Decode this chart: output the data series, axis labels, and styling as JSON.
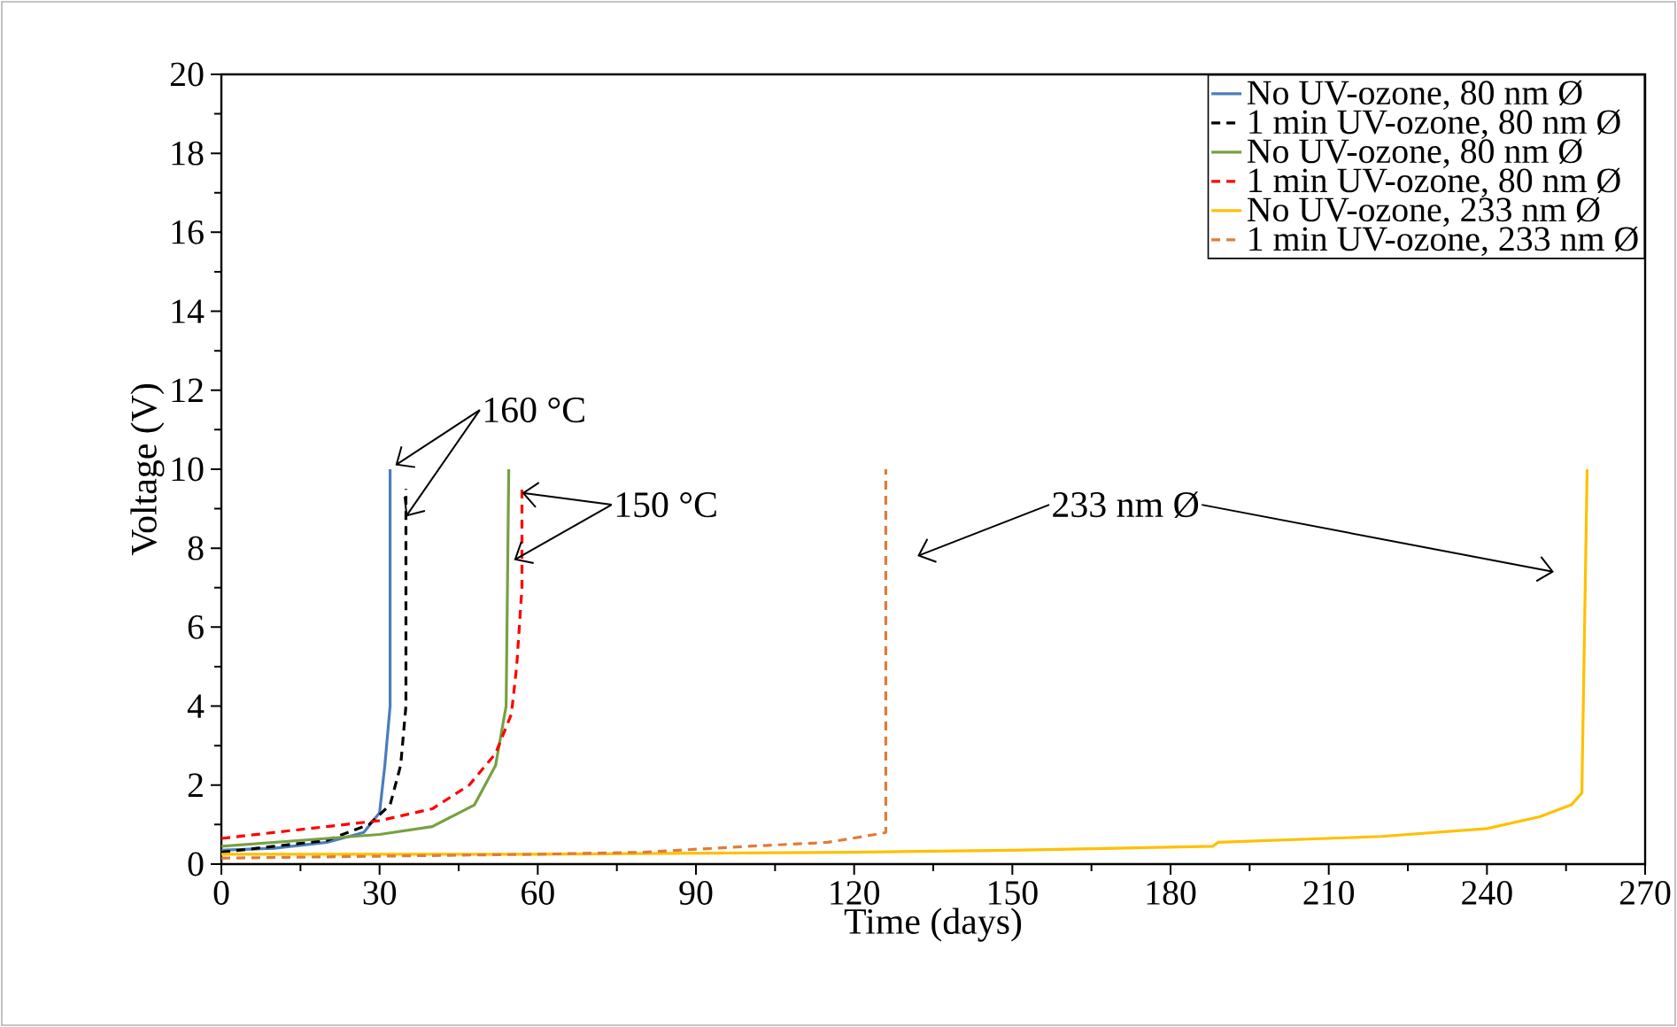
{
  "chart_data": {
    "type": "line",
    "xlabel": "Time (days)",
    "ylabel": "Voltage (V)",
    "xlim": [
      0,
      270
    ],
    "xticks": [
      0,
      30,
      60,
      90,
      120,
      150,
      180,
      210,
      240,
      270
    ],
    "ylim": [
      0,
      20
    ],
    "yticks": [
      0,
      2,
      4,
      6,
      8,
      10,
      12,
      14,
      16,
      18,
      20
    ],
    "grid": false,
    "legend": "top right",
    "marker": "none",
    "annotations": [
      {
        "text": "160 °C",
        "x": 33,
        "y": 10.1
      },
      {
        "text": "150 °C",
        "x": 57,
        "y": 9.4
      },
      "233 nm Ø"
    ],
    "series": [
      {
        "name": "No UV-ozone, 80 nm Ø",
        "color": "#4a7ebb",
        "line_style": "solid",
        "x": [
          0,
          10,
          20,
          27,
          30,
          31,
          32,
          32
        ],
        "values": [
          0.35,
          0.4,
          0.55,
          0.8,
          1.3,
          2.5,
          4,
          10
        ]
      },
      {
        "name": "1 min UV-ozone, 80 nm Ø",
        "color": "#000000",
        "line_style": "dashed",
        "x": [
          0,
          10,
          20,
          28,
          32,
          34,
          35,
          35
        ],
        "values": [
          0.3,
          0.45,
          0.6,
          1.0,
          1.5,
          2.5,
          4,
          9.5
        ]
      },
      {
        "name": "No UV-ozone, 80 nm Ø",
        "color": "#77a043",
        "line_style": "solid",
        "x": [
          0,
          10,
          20,
          30,
          40,
          48,
          52,
          54,
          54.5
        ],
        "values": [
          0.45,
          0.55,
          0.65,
          0.75,
          0.95,
          1.5,
          2.5,
          4,
          10
        ]
      },
      {
        "name": "1 min UV-ozone, 80 nm Ø",
        "color": "#ff0000",
        "line_style": "dashed",
        "x": [
          0,
          10,
          20,
          30,
          40,
          47,
          52,
          55,
          56,
          57,
          57
        ],
        "values": [
          0.65,
          0.8,
          0.95,
          1.1,
          1.4,
          2.0,
          2.8,
          3.8,
          5,
          7,
          9.5
        ]
      },
      {
        "name": "No UV-ozone, 233 nm Ø",
        "color": "#ffc000",
        "line_style": "solid",
        "x": [
          0,
          60,
          120,
          150,
          188,
          189,
          220,
          240,
          250,
          256,
          258,
          259
        ],
        "values": [
          0.25,
          0.25,
          0.3,
          0.35,
          0.45,
          0.55,
          0.7,
          0.9,
          1.2,
          1.5,
          1.8,
          10
        ]
      },
      {
        "name": "1 min UV-ozone, 233 nm Ø",
        "color": "#e07b39",
        "line_style": "dashed",
        "x": [
          0,
          30,
          60,
          80,
          100,
          115,
          124,
          126,
          126
        ],
        "values": [
          0.15,
          0.2,
          0.25,
          0.3,
          0.45,
          0.55,
          0.75,
          0.8,
          10
        ]
      }
    ]
  }
}
